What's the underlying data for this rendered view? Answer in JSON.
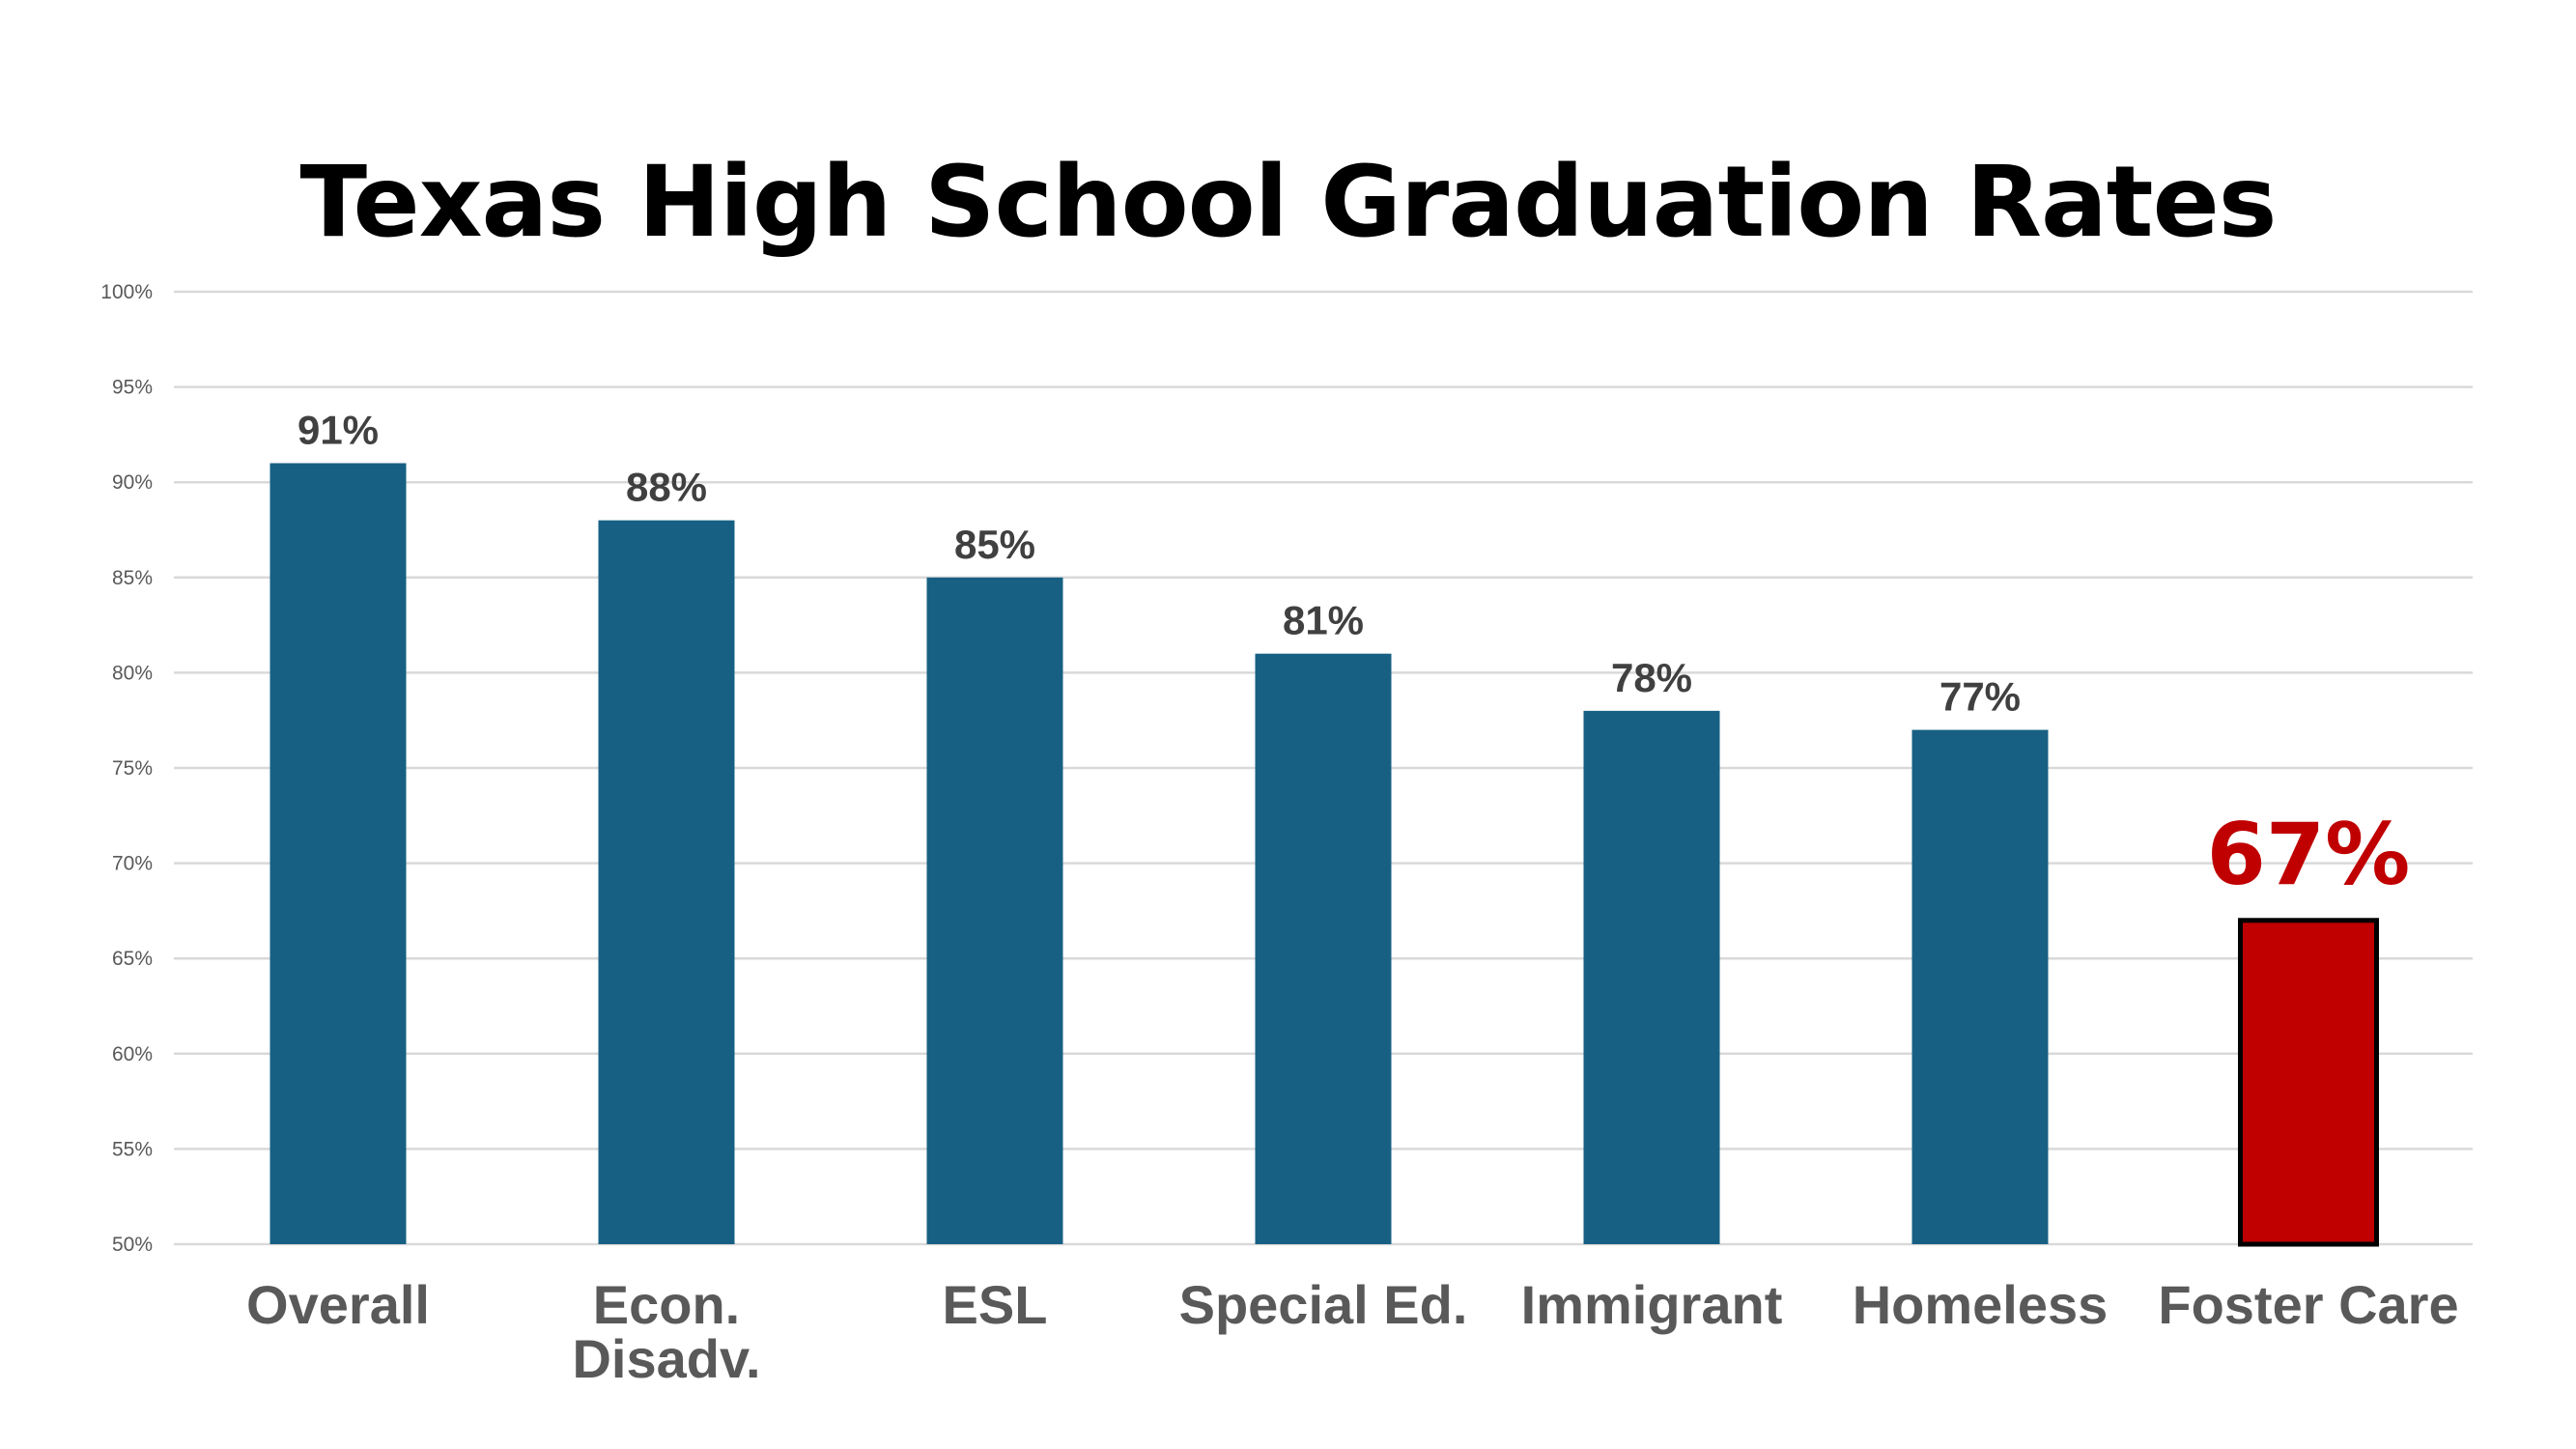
{
  "chart_data": {
    "type": "bar",
    "title": "Texas High School Graduation Rates",
    "xlabel": "",
    "ylabel": "",
    "categories": [
      [
        "Overall"
      ],
      [
        "Econ.",
        "Disadv."
      ],
      [
        "ESL"
      ],
      [
        "Special Ed."
      ],
      [
        "Immigrant"
      ],
      [
        "Homeless"
      ],
      [
        "Foster Care"
      ]
    ],
    "values": [
      91,
      88,
      85,
      81,
      78,
      77,
      67
    ],
    "value_labels": [
      "91%",
      "88%",
      "85%",
      "81%",
      "78%",
      "77%",
      "67%"
    ],
    "ylim": [
      50,
      100
    ],
    "y_ticks": [
      50,
      55,
      60,
      65,
      70,
      75,
      80,
      85,
      90,
      95,
      100
    ],
    "y_tick_labels": [
      "50%",
      "55%",
      "60%",
      "65%",
      "70%",
      "75%",
      "80%",
      "85%",
      "90%",
      "95%",
      "100%"
    ],
    "grid": true,
    "legend": "none",
    "colors": {
      "bar": "#176083",
      "highlight_bar": "#C00000",
      "highlight_label": "#C00000",
      "highlight_outline": "#000000",
      "value_label": "#404040",
      "category_label": "#595959",
      "tick_label": "#595959",
      "grid": "#D9D9D9"
    },
    "highlight_index": 6
  }
}
